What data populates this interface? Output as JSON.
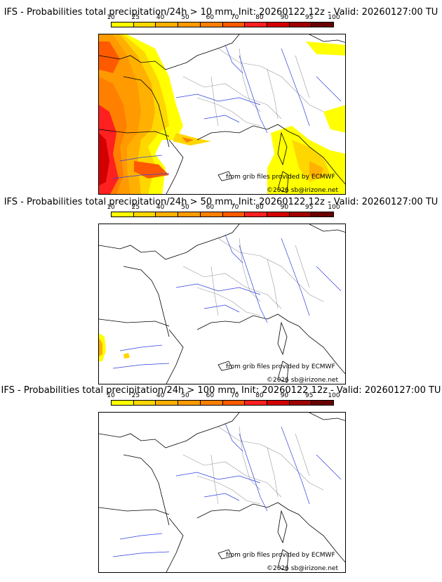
{
  "legend": {
    "ticks": [
      "10",
      "25",
      "40",
      "50",
      "60",
      "70",
      "80",
      "90",
      "95",
      "100"
    ],
    "colors": [
      "#ffff00",
      "#ffd700",
      "#ffb000",
      "#ff9a00",
      "#ff7f00",
      "#ff5a00",
      "#ff2020",
      "#d40000",
      "#a00000",
      "#6a0000"
    ]
  },
  "credits": {
    "source": "from grib files provided by ECMWF",
    "copyright": "©2026 sb@irizone.net"
  },
  "panels": [
    {
      "title": "IFS - Probabilities total precipitation/24h > 10 mm, Init: 20260122 12z - Valid: 20260127:00 TU"
    },
    {
      "title": "IFS - Probabilities total precipitation/24h > 50 mm, Init: 20260122 12z - Valid: 20260127:00 TU"
    },
    {
      "title": "IFS - Probabilities total precipitation/24h > 100 mm, Init: 20260122 12z - Valid: 20260127:00 TU"
    }
  ]
}
